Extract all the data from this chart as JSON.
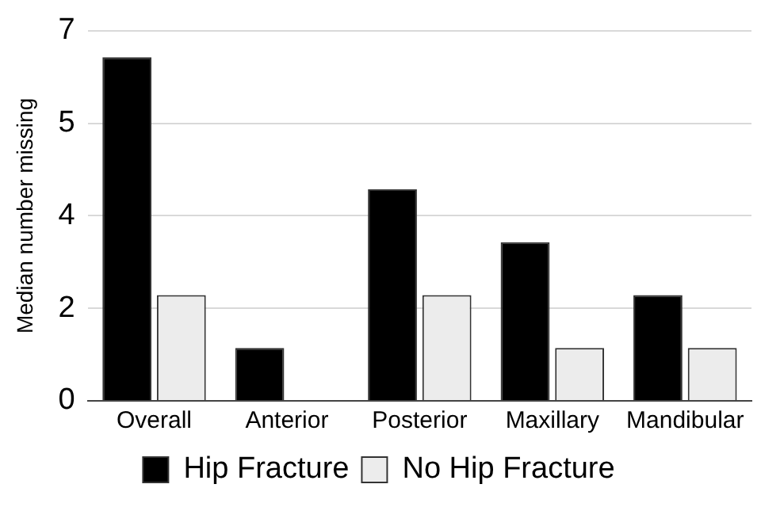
{
  "chart_data": {
    "type": "bar",
    "ylabel": "Median number missing",
    "categories": [
      "Overall",
      "Anterior",
      "Posterior",
      "Maxillary",
      "Mandibular"
    ],
    "series": [
      {
        "name": "Hip Fracture",
        "color": "#000000",
        "values": [
          6.5,
          1,
          4,
          3,
          2
        ]
      },
      {
        "name": "No Hip Fracture",
        "color": "#ececec",
        "values": [
          2,
          0,
          2,
          1,
          1
        ]
      }
    ],
    "ylim": [
      0,
      7
    ],
    "yticks": [
      0,
      {
        "value": 1.75,
        "label": "2"
      },
      {
        "value": 3.5,
        "label": "4"
      },
      {
        "value": 5.25,
        "label": "5"
      },
      7
    ],
    "grid": "y",
    "legend": "bottom"
  }
}
